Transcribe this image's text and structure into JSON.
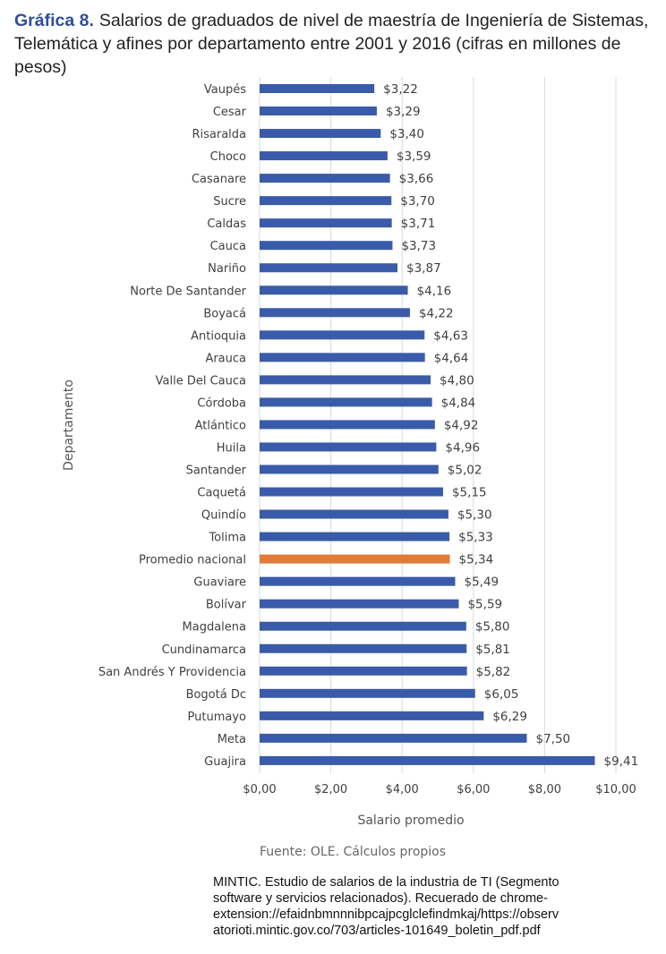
{
  "title": {
    "label": "Gráfica 8.",
    "line1": "Salarios de graduados de nivel de maestría de Ingeniería de Sistemas,",
    "line2": "Telemática y afines por departamento entre 2001 y 2016 (cifras en millones de pesos)"
  },
  "source": "Fuente: OLE. Cálculos propios",
  "citation": {
    "line1": "MINTIC. Estudio de salarios de la industria de TI  (Segmento",
    "line2": "software y servicios relacionados). Recuerado de chrome-",
    "line3": "extension://efaidnbmnnnibpcajpcglclefindmkaj/https://observ",
    "line4": "atorioti.mintic.gov.co/703/articles-101649_boletin_pdf.pdf"
  },
  "chart_data": {
    "type": "bar",
    "orientation": "horizontal",
    "xlabel": "Salario promedio",
    "ylabel": "Departamento",
    "xlim": [
      0,
      10
    ],
    "xticks": [
      0,
      2,
      4,
      6,
      8,
      10
    ],
    "xtick_labels": [
      "$0,00",
      "$2,00",
      "$4,00",
      "$6,00",
      "$8,00",
      "$10,00"
    ],
    "grid": true,
    "categories": [
      "Vaupés",
      "Cesar",
      "Risaralda",
      "Choco",
      "Casanare",
      "Sucre",
      "Caldas",
      "Cauca",
      "Nariño",
      "Norte De Santander",
      "Boyacá",
      "Antioquia",
      "Arauca",
      "Valle Del Cauca",
      "Córdoba",
      "Atlántico",
      "Huila",
      "Santander",
      "Caquetá",
      "Quindío",
      "Tolima",
      "Promedio nacional",
      "Guaviare",
      "Bolívar",
      "Magdalena",
      "Cundinamarca",
      "San Andrés Y Providencia",
      "Bogotá Dc",
      "Putumayo",
      "Meta",
      "Guajira"
    ],
    "values": [
      3.22,
      3.29,
      3.4,
      3.59,
      3.66,
      3.7,
      3.71,
      3.73,
      3.87,
      4.16,
      4.22,
      4.63,
      4.64,
      4.8,
      4.84,
      4.92,
      4.96,
      5.02,
      5.15,
      5.3,
      5.33,
      5.34,
      5.49,
      5.59,
      5.8,
      5.81,
      5.82,
      6.05,
      6.29,
      7.5,
      9.41
    ],
    "value_labels": [
      "$3,22",
      "$3,29",
      "$3,40",
      "$3,59",
      "$3,66",
      "$3,70",
      "$3,71",
      "$3,73",
      "$3,87",
      "$4,16",
      "$4,22",
      "$4,63",
      "$4,64",
      "$4,80",
      "$4,84",
      "$4,92",
      "$4,96",
      "$5,02",
      "$5,15",
      "$5,30",
      "$5,33",
      "$5,34",
      "$5,49",
      "$5,59",
      "$5,80",
      "$5,81",
      "$5,82",
      "$6,05",
      "$6,29",
      "$7,50",
      "$9,41"
    ],
    "highlight_category": "Promedio nacional",
    "colors": {
      "bar": "#3a5ba9",
      "highlight": "#e07b39",
      "grid": "#d9d9d9",
      "text": "#404040"
    }
  }
}
